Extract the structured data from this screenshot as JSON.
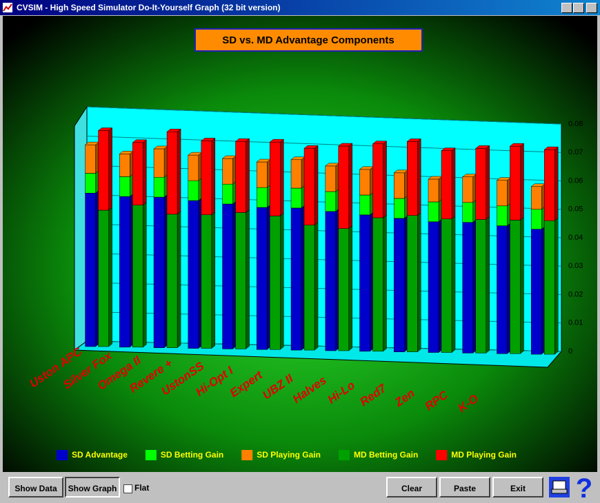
{
  "window": {
    "title": "CVSIM - High Speed Simulator Do-It-Yourself Graph (32 bit version)"
  },
  "chart_data": {
    "type": "stacked-3d-bar",
    "title": "SD vs. MD Advantage Components",
    "categories": [
      "Uston APC",
      "Silver Fox",
      "Omega II",
      "Revere +",
      "UstonSS",
      "Hi-Opt I",
      "Expert",
      "UBZ II",
      "Halves",
      "Hi-Lo",
      "Red7",
      "Zen",
      "RPC",
      "K-O"
    ],
    "series": [
      {
        "name": "SD Advantage",
        "color": "#0000cc",
        "values": [
          0.054,
          0.053,
          0.053,
          0.052,
          0.051,
          0.05,
          0.05,
          0.049,
          0.048,
          0.047,
          0.046,
          0.046,
          0.045,
          0.044
        ]
      },
      {
        "name": "SD Betting Gain",
        "color": "#00ff00",
        "values": [
          0.007,
          0.007,
          0.007,
          0.007,
          0.007,
          0.007,
          0.007,
          0.007,
          0.007,
          0.007,
          0.007,
          0.007,
          0.007,
          0.007
        ]
      },
      {
        "name": "SD Playing Gain",
        "color": "#ff8000",
        "values": [
          0.01,
          0.008,
          0.01,
          0.009,
          0.009,
          0.009,
          0.01,
          0.009,
          0.009,
          0.009,
          0.008,
          0.009,
          0.009,
          0.008
        ]
      },
      {
        "name": "MD Betting Gain",
        "color": "#00a000",
        "values": [
          0.048,
          0.05,
          0.047,
          0.047,
          0.048,
          0.047,
          0.044,
          0.043,
          0.047,
          0.048,
          0.047,
          0.047,
          0.047,
          0.047
        ]
      },
      {
        "name": "MD Playing Gain",
        "color": "#ff0000",
        "values": [
          0.028,
          0.022,
          0.029,
          0.026,
          0.025,
          0.026,
          0.027,
          0.029,
          0.026,
          0.026,
          0.024,
          0.025,
          0.026,
          0.025
        ]
      }
    ],
    "ylim": [
      0,
      0.08
    ],
    "yticks": [
      0,
      0.01,
      0.02,
      0.03,
      0.04,
      0.05,
      0.06,
      0.07,
      0.08
    ],
    "grid": true
  },
  "toolbar": {
    "show_data": "Show Data",
    "show_graph": "Show Graph",
    "flat": "Flat",
    "clear": "Clear",
    "paste": "Paste",
    "exit": "Exit"
  }
}
